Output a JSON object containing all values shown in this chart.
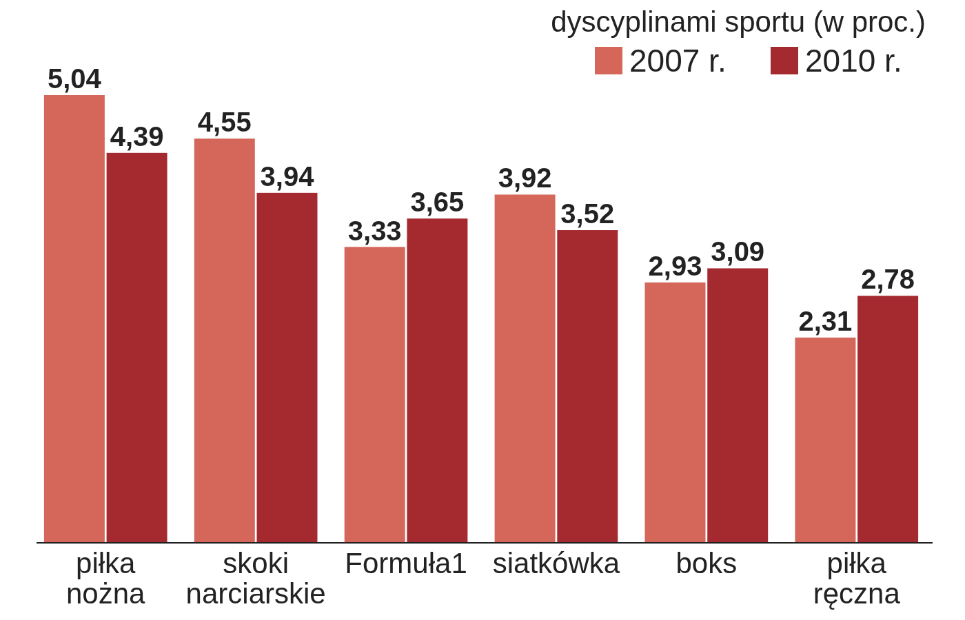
{
  "chart_data": {
    "type": "bar",
    "title": "dyscyplinami sportu (w proc.)",
    "categories": [
      "piłka nożna",
      "skoki narciarskie",
      "Formuła1",
      "siatkówka",
      "boks",
      "piłka ręczna"
    ],
    "series": [
      {
        "name": "2007 r.",
        "color": "#d4675a",
        "values": [
          5.04,
          4.55,
          3.33,
          3.92,
          2.93,
          2.31
        ],
        "value_labels": [
          "5,04",
          "4,55",
          "3,33",
          "3,92",
          "2,93",
          "2,31"
        ]
      },
      {
        "name": "2010 r.",
        "color": "#a52a30",
        "values": [
          4.39,
          3.94,
          3.65,
          3.52,
          3.09,
          2.78
        ],
        "value_labels": [
          "4,39",
          "3,94",
          "3,65",
          "3,52",
          "3,09",
          "2,78"
        ]
      }
    ],
    "legend": "top right"
  }
}
